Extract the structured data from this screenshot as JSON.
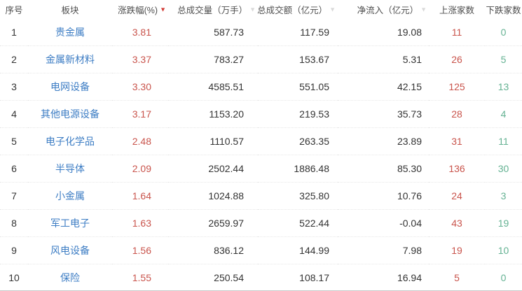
{
  "colors": {
    "up_red": "#c9544c",
    "down_green": "#65b293",
    "sector_link_blue": "#3d7dc4",
    "sort_active_red": "#d23b35",
    "sort_inactive_gray": "#d9d9d9",
    "header_text": "#4d4d4d",
    "cell_text": "#333333"
  },
  "table": {
    "columns": [
      {
        "key": "index",
        "label": "序号",
        "sortable": false,
        "sort": "none"
      },
      {
        "key": "sector",
        "label": "板块",
        "sortable": false,
        "sort": "none"
      },
      {
        "key": "change",
        "label": "涨跌幅(%)",
        "sortable": true,
        "sort": "active-desc"
      },
      {
        "key": "volume",
        "label": "总成交量（万手）",
        "sortable": true,
        "sort": "inactive"
      },
      {
        "key": "turnover",
        "label": "总成交额（亿元）",
        "sortable": true,
        "sort": "inactive"
      },
      {
        "key": "inflow",
        "label": "净流入（亿元）",
        "sortable": true,
        "sort": "inactive"
      },
      {
        "key": "gainers",
        "label": "上涨家数",
        "sortable": false,
        "sort": "none"
      },
      {
        "key": "losers",
        "label": "下跌家数",
        "sortable": false,
        "sort": "none"
      }
    ],
    "sort_triangle_glyph": "▼",
    "rows": [
      {
        "index": "1",
        "sector": "贵金属",
        "change": "3.81",
        "volume": "587.73",
        "turnover": "117.59",
        "inflow": "19.08",
        "gainers": "11",
        "losers": "0"
      },
      {
        "index": "2",
        "sector": "金属新材料",
        "change": "3.37",
        "volume": "783.27",
        "turnover": "153.67",
        "inflow": "5.31",
        "gainers": "26",
        "losers": "5"
      },
      {
        "index": "3",
        "sector": "电网设备",
        "change": "3.30",
        "volume": "4585.51",
        "turnover": "551.05",
        "inflow": "42.15",
        "gainers": "125",
        "losers": "13"
      },
      {
        "index": "4",
        "sector": "其他电源设备",
        "change": "3.17",
        "volume": "1153.20",
        "turnover": "219.53",
        "inflow": "35.73",
        "gainers": "28",
        "losers": "4"
      },
      {
        "index": "5",
        "sector": "电子化学品",
        "change": "2.48",
        "volume": "1110.57",
        "turnover": "263.35",
        "inflow": "23.89",
        "gainers": "31",
        "losers": "11"
      },
      {
        "index": "6",
        "sector": "半导体",
        "change": "2.09",
        "volume": "2502.44",
        "turnover": "1886.48",
        "inflow": "85.30",
        "gainers": "136",
        "losers": "30"
      },
      {
        "index": "7",
        "sector": "小金属",
        "change": "1.64",
        "volume": "1024.88",
        "turnover": "325.80",
        "inflow": "10.76",
        "gainers": "24",
        "losers": "3"
      },
      {
        "index": "8",
        "sector": "军工电子",
        "change": "1.63",
        "volume": "2659.97",
        "turnover": "522.44",
        "inflow": "-0.04",
        "gainers": "43",
        "losers": "19"
      },
      {
        "index": "9",
        "sector": "风电设备",
        "change": "1.56",
        "volume": "836.12",
        "turnover": "144.99",
        "inflow": "7.98",
        "gainers": "19",
        "losers": "10"
      },
      {
        "index": "10",
        "sector": "保险",
        "change": "1.55",
        "volume": "250.54",
        "turnover": "108.17",
        "inflow": "16.94",
        "gainers": "5",
        "losers": "0"
      }
    ]
  }
}
